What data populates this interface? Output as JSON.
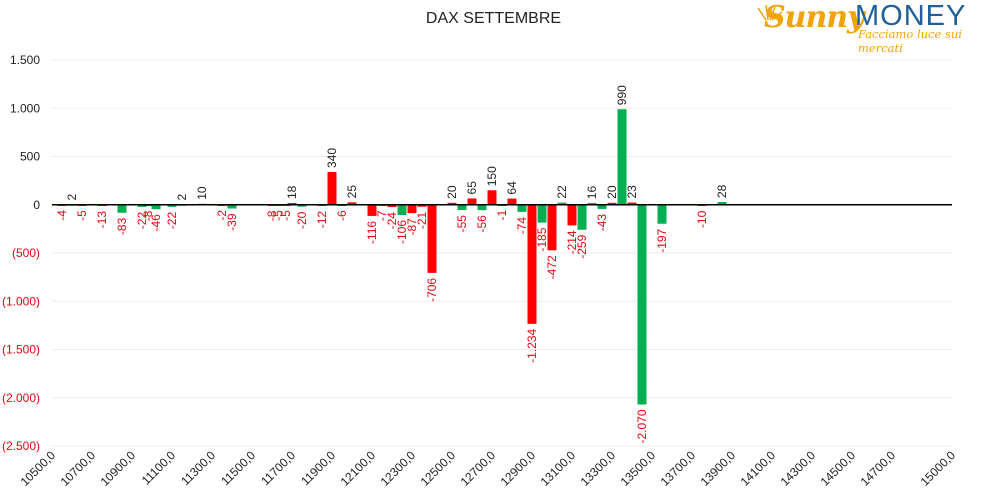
{
  "chart_data": {
    "type": "bar",
    "title": "DAX SETTEMBRE",
    "ylim": [
      -2500,
      1500
    ],
    "y_ticks": [
      {
        "value": 1500,
        "label": "1.500"
      },
      {
        "value": 1000,
        "label": "1.000"
      },
      {
        "value": 500,
        "label": "500"
      },
      {
        "value": 0,
        "label": "0"
      },
      {
        "value": -500,
        "label": "(500)"
      },
      {
        "value": -1000,
        "label": "(1.000)"
      },
      {
        "value": -1500,
        "label": "(1.500)"
      },
      {
        "value": -2000,
        "label": "(2.000)"
      },
      {
        "value": -2500,
        "label": "(2.500)"
      }
    ],
    "negative_tick_color": "#e30613",
    "x_range": [
      10500,
      15000
    ],
    "x_tick_step": 200,
    "x_tick_labels": [
      "10500,0",
      "10700,0",
      "10900,0",
      "11100,0",
      "11300,0",
      "11500,0",
      "11700,0",
      "11900,0",
      "12100,0",
      "12300,0",
      "12500,0",
      "12700,0",
      "12900,0",
      "13100,0",
      "13300,0",
      "13500,0",
      "13700,0",
      "13900,0",
      "14100,0",
      "14300,0",
      "14500,0",
      "14700,0",
      "15000,0"
    ],
    "colors": {
      "red": "#ff0000",
      "green": "#00b050",
      "label_negative": "#e30613",
      "label_positive": "#222222"
    },
    "bars": [
      {
        "x": 10550,
        "value": -4,
        "label": "-4",
        "color": "red"
      },
      {
        "x": 10600,
        "value": 2,
        "label": "2",
        "color": "green"
      },
      {
        "x": 10650,
        "value": -5,
        "label": "-5",
        "color": "red"
      },
      {
        "x": 10750,
        "value": -13,
        "label": "-13",
        "color": "red"
      },
      {
        "x": 10850,
        "value": -83,
        "label": "-83",
        "color": "green"
      },
      {
        "x": 10950,
        "value": -22,
        "label": "-22",
        "color": "green"
      },
      {
        "x": 10980,
        "value": -8,
        "label": "-8",
        "color": "red"
      },
      {
        "x": 11020,
        "value": -46,
        "label": "-46",
        "color": "green"
      },
      {
        "x": 11100,
        "value": -22,
        "label": "-22",
        "color": "green"
      },
      {
        "x": 11150,
        "value": 2,
        "label": "2",
        "color": "green"
      },
      {
        "x": 11250,
        "value": 10,
        "label": "10",
        "color": "green"
      },
      {
        "x": 11350,
        "value": -2,
        "label": "-2",
        "color": "red"
      },
      {
        "x": 11400,
        "value": -39,
        "label": "-39",
        "color": "green"
      },
      {
        "x": 11600,
        "value": -8,
        "label": "-8",
        "color": "red"
      },
      {
        "x": 11630,
        "value": -5,
        "label": "-5",
        "color": "red"
      },
      {
        "x": 11670,
        "value": -5,
        "label": "-5",
        "color": "red"
      },
      {
        "x": 11700,
        "value": 18,
        "label": "18",
        "color": "red"
      },
      {
        "x": 11750,
        "value": -20,
        "label": "-20",
        "color": "green"
      },
      {
        "x": 11850,
        "value": -12,
        "label": "-12",
        "color": "red"
      },
      {
        "x": 11900,
        "value": 340,
        "label": "340",
        "color": "red"
      },
      {
        "x": 11950,
        "value": -6,
        "label": "-6",
        "color": "red"
      },
      {
        "x": 12000,
        "value": 25,
        "label": "25",
        "color": "red"
      },
      {
        "x": 12100,
        "value": -116,
        "label": "-116",
        "color": "red"
      },
      {
        "x": 12150,
        "value": -7,
        "label": "-7",
        "color": "red"
      },
      {
        "x": 12200,
        "value": -24,
        "label": "-24",
        "color": "red"
      },
      {
        "x": 12250,
        "value": -106,
        "label": "-106",
        "color": "green"
      },
      {
        "x": 12300,
        "value": -87,
        "label": "-87",
        "color": "red"
      },
      {
        "x": 12350,
        "value": -21,
        "label": "-21",
        "color": "red"
      },
      {
        "x": 12400,
        "value": -706,
        "label": "-706",
        "color": "red"
      },
      {
        "x": 12500,
        "value": 20,
        "label": "20",
        "color": "red"
      },
      {
        "x": 12550,
        "value": -55,
        "label": "-55",
        "color": "green"
      },
      {
        "x": 12600,
        "value": 65,
        "label": "65",
        "color": "red"
      },
      {
        "x": 12650,
        "value": -56,
        "label": "-56",
        "color": "green"
      },
      {
        "x": 12700,
        "value": 150,
        "label": "150",
        "color": "red"
      },
      {
        "x": 12750,
        "value": -1,
        "label": "-1",
        "color": "red"
      },
      {
        "x": 12800,
        "value": 64,
        "label": "64",
        "color": "red"
      },
      {
        "x": 12850,
        "value": -74,
        "label": "-74",
        "color": "green"
      },
      {
        "x": 12900,
        "value": -1234,
        "label": "-1.234",
        "color": "red"
      },
      {
        "x": 12950,
        "value": -185,
        "label": "-185",
        "color": "green"
      },
      {
        "x": 13000,
        "value": -472,
        "label": "-472",
        "color": "red"
      },
      {
        "x": 13050,
        "value": 22,
        "label": "22",
        "color": "green"
      },
      {
        "x": 13100,
        "value": -214,
        "label": "-214",
        "color": "red"
      },
      {
        "x": 13150,
        "value": -259,
        "label": "-259",
        "color": "green"
      },
      {
        "x": 13200,
        "value": 16,
        "label": "16",
        "color": "red"
      },
      {
        "x": 13250,
        "value": -43,
        "label": "-43",
        "color": "green"
      },
      {
        "x": 13300,
        "value": 20,
        "label": "20",
        "color": "red"
      },
      {
        "x": 13350,
        "value": 990,
        "label": "990",
        "color": "green"
      },
      {
        "x": 13400,
        "value": 23,
        "label": "23",
        "color": "red"
      },
      {
        "x": 13450,
        "value": -2070,
        "label": "-2.070",
        "color": "green"
      },
      {
        "x": 13550,
        "value": -197,
        "label": "-197",
        "color": "green"
      },
      {
        "x": 13750,
        "value": -10,
        "label": "-10",
        "color": "red"
      },
      {
        "x": 13850,
        "value": 28,
        "label": "28",
        "color": "green"
      }
    ]
  },
  "logo": {
    "brand_sunny": "Sunny",
    "brand_money": "MONEY",
    "tagline": "Facciamo luce sui mercati"
  }
}
